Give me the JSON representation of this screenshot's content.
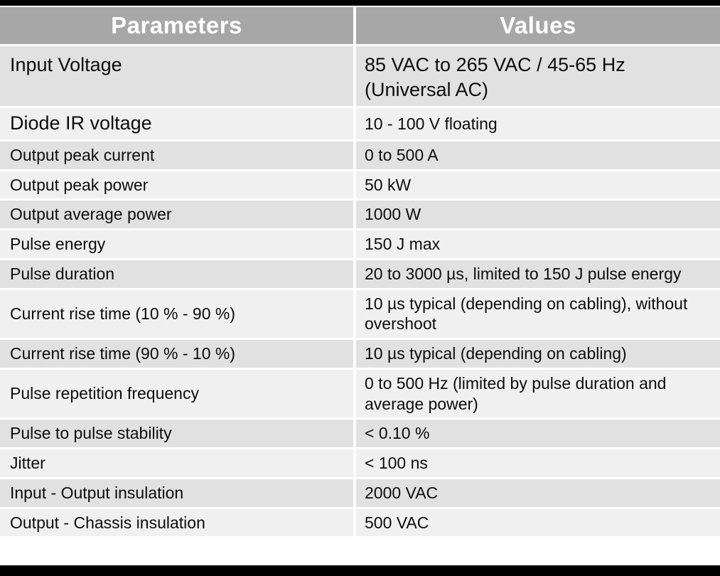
{
  "table": {
    "header": {
      "columns": [
        "Parameters",
        "Values"
      ]
    },
    "rows": [
      {
        "parameter": "Input Voltage",
        "value": "85 VAC to 265 VAC / 45-65 Hz (Universal AC)"
      },
      {
        "parameter": "Diode IR voltage",
        "value": "10 - 100 V floating"
      },
      {
        "parameter": "Output peak current",
        "value": "0 to 500 A"
      },
      {
        "parameter": "Output peak power",
        "value": "50 kW"
      },
      {
        "parameter": "Output average power",
        "value": "1000 W"
      },
      {
        "parameter": "Pulse energy",
        "value": "150 J max"
      },
      {
        "parameter": "Pulse duration",
        "value": "20 to 3000 µs, limited to 150 J pulse energy"
      },
      {
        "parameter": "Current rise time (10 % - 90 %)",
        "value": "10 µs typical (depending on cabling), without overshoot"
      },
      {
        "parameter": "Current rise time (90 % - 10 %)",
        "value": "10 µs typical (depending on cabling)"
      },
      {
        "parameter": "Pulse repetition frequency",
        "value": "0 to 500 Hz (limited by pulse duration and average power)"
      },
      {
        "parameter": "Pulse to pulse stability",
        "value": "< 0.10 %"
      },
      {
        "parameter": "Jitter",
        "value": "< 100 ns"
      },
      {
        "parameter": "Input - Output insulation",
        "value": "2000 VAC"
      },
      {
        "parameter": "Output - Chassis insulation",
        "value": "500 VAC"
      }
    ]
  },
  "colors": {
    "frame_bar": "#000000",
    "header_bg": "#a7a7a7",
    "header_text": "#ffffff",
    "row_odd_bg": "#e1e1e1",
    "row_even_bg": "#f0f0f0",
    "separator": "#ffffff",
    "body_text": "#0d0d0d"
  }
}
